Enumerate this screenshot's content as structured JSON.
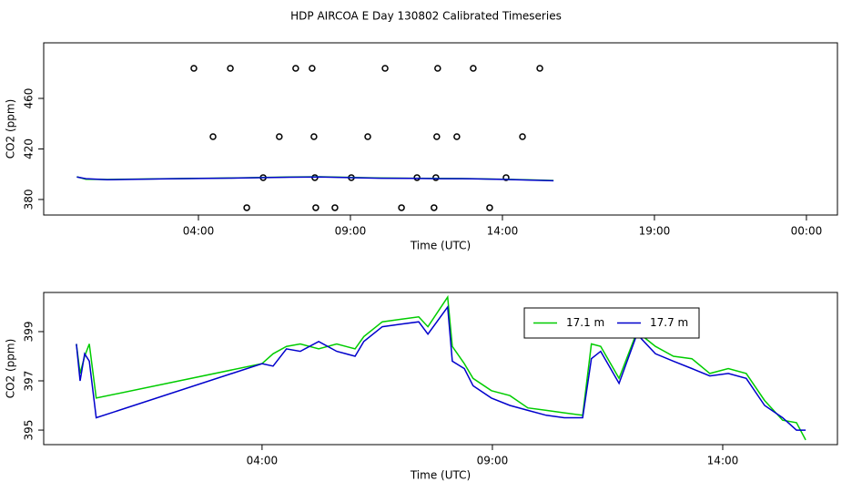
{
  "title": "HDP AIRCOA E  Day 130802  Calibrated Timeseries",
  "chart_data": [
    {
      "type": "line",
      "xlabel": "Time (UTC)",
      "ylabel": "CO2 (ppm)",
      "xlim": [
        -1.09,
        25.02
      ],
      "ylim": [
        367.7,
        504
      ],
      "xticks": [
        {
          "value": 4,
          "label": "04:00"
        },
        {
          "value": 9,
          "label": "09:00"
        },
        {
          "value": 14,
          "label": "14:00"
        },
        {
          "value": 19,
          "label": "19:00"
        },
        {
          "value": 24,
          "label": "00:00"
        }
      ],
      "yticks": [
        380,
        420,
        460
      ],
      "series": [
        {
          "type": "scatter",
          "color": "#000000",
          "x": [
            3.85,
            5.05,
            7.2,
            7.74,
            10.14,
            11.87,
            13.04,
            15.23,
            4.48,
            6.66,
            7.8,
            9.57,
            11.84,
            12.5,
            14.66,
            6.13,
            7.83,
            9.03,
            11.19,
            11.81,
            14.12,
            5.59,
            7.86,
            8.49,
            10.68,
            11.75,
            13.58
          ],
          "values": [
            483.8,
            483.8,
            483.8,
            483.8,
            483.8,
            483.8,
            483.8,
            483.8,
            429.7,
            429.7,
            429.7,
            429.7,
            429.7,
            429.7,
            429.7,
            397.3,
            397.3,
            397.3,
            397.3,
            397.3,
            397.3,
            373.5,
            373.5,
            373.5,
            373.5,
            373.5,
            373.5
          ]
        },
        {
          "type": "line",
          "color": "#00cc00",
          "x": [
            0,
            0.3,
            1,
            3,
            5,
            7,
            8,
            9,
            10,
            11,
            12,
            13,
            14,
            15,
            15.68
          ],
          "values": [
            398,
            396,
            395.8,
            396.5,
            397,
            397.8,
            398,
            397.5,
            397,
            396.8,
            396.6,
            396.5,
            396,
            395.5,
            395
          ]
        },
        {
          "type": "line",
          "color": "#0000cc",
          "x": [
            0,
            0.3,
            1,
            3,
            5,
            7,
            8,
            9,
            10,
            11,
            12,
            13,
            14,
            15,
            15.68
          ],
          "values": [
            397.8,
            396.5,
            395.6,
            396.4,
            396.9,
            397.6,
            397.8,
            397.3,
            396.8,
            396.7,
            396.5,
            396.4,
            395.9,
            395.3,
            394.8
          ]
        }
      ]
    },
    {
      "type": "line",
      "xlabel": "Time (UTC)",
      "ylabel": "CO2 (ppm)",
      "xlim": [
        -0.74,
        16.49
      ],
      "ylim": [
        394.41,
        400.59
      ],
      "xticks": [
        {
          "value": 4,
          "label": "04:00"
        },
        {
          "value": 9,
          "label": "09:00"
        },
        {
          "value": 14,
          "label": "14:00"
        }
      ],
      "yticks": [
        395,
        397,
        399
      ],
      "legend": "top-right",
      "series": [
        {
          "type": "line",
          "name": "17.1 m",
          "color": "#00cc00",
          "x": [
            -0.03,
            0.05,
            0.15,
            0.25,
            0.4,
            4.0,
            4.24,
            4.53,
            4.83,
            5.23,
            5.62,
            6.02,
            6.21,
            6.61,
            7.0,
            7.4,
            7.6,
            8.03,
            8.13,
            8.39,
            8.58,
            8.98,
            9.38,
            9.77,
            10.17,
            10.56,
            10.96,
            11.15,
            11.35,
            11.75,
            12.14,
            12.54,
            12.93,
            13.33,
            13.72,
            14.12,
            14.51,
            14.91,
            15.3,
            15.6,
            15.8
          ],
          "values": [
            398.5,
            397.3,
            398.0,
            398.5,
            396.3,
            397.7,
            398.1,
            398.4,
            398.5,
            398.3,
            398.5,
            398.3,
            398.8,
            399.4,
            399.5,
            399.6,
            399.2,
            400.4,
            398.4,
            397.7,
            397.1,
            396.6,
            396.4,
            395.9,
            395.8,
            395.7,
            395.6,
            398.5,
            398.4,
            397.1,
            399.0,
            398.4,
            398.0,
            397.9,
            397.3,
            397.5,
            397.3,
            396.2,
            395.4,
            395.3,
            394.6
          ]
        },
        {
          "type": "line",
          "name": "17.7 m",
          "color": "#0000cc",
          "x": [
            -0.03,
            0.05,
            0.15,
            0.25,
            0.4,
            4.0,
            4.24,
            4.53,
            4.83,
            5.23,
            5.62,
            6.02,
            6.21,
            6.61,
            7.0,
            7.4,
            7.6,
            8.03,
            8.13,
            8.39,
            8.58,
            8.98,
            9.38,
            9.77,
            10.17,
            10.56,
            10.96,
            11.15,
            11.35,
            11.75,
            12.14,
            12.54,
            12.93,
            13.33,
            13.72,
            14.12,
            14.51,
            14.91,
            15.3,
            15.6,
            15.8
          ],
          "values": [
            398.5,
            397.0,
            398.1,
            397.8,
            395.5,
            397.7,
            397.6,
            398.3,
            398.2,
            398.6,
            398.2,
            398.0,
            398.6,
            399.2,
            399.3,
            399.4,
            398.9,
            400.0,
            397.8,
            397.5,
            396.8,
            396.3,
            396.0,
            395.8,
            395.6,
            395.5,
            395.5,
            397.9,
            398.2,
            396.9,
            398.9,
            398.1,
            397.8,
            397.5,
            397.2,
            397.3,
            397.1,
            396.0,
            395.5,
            395.0,
            395.0
          ]
        }
      ]
    }
  ]
}
